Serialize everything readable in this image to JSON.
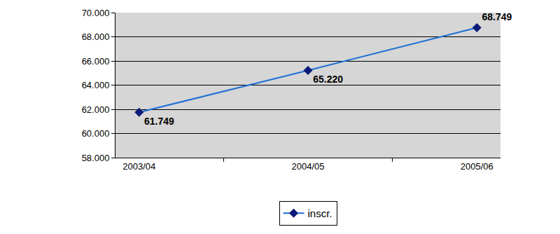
{
  "chart_data": {
    "type": "line",
    "categories": [
      "2003/04",
      "2004/05",
      "2005/06"
    ],
    "series": [
      {
        "name": "inscr.",
        "color": "#1f6fd6",
        "marker": "diamond",
        "values": [
          61749,
          65220,
          68749
        ],
        "value_labels": [
          "61.749",
          "65.220",
          "68.749"
        ]
      }
    ],
    "ylim": [
      58000,
      70000
    ],
    "yticks": [
      {
        "value": 58000,
        "label": "58.000"
      },
      {
        "value": 60000,
        "label": "60.000"
      },
      {
        "value": 62000,
        "label": "62.000"
      },
      {
        "value": 64000,
        "label": "64.000"
      },
      {
        "value": 66000,
        "label": "66.000"
      },
      {
        "value": 68000,
        "label": "68.000"
      },
      {
        "value": 70000,
        "label": "70.000"
      }
    ],
    "grid": true,
    "data_labels": true,
    "legend": "bottom"
  }
}
